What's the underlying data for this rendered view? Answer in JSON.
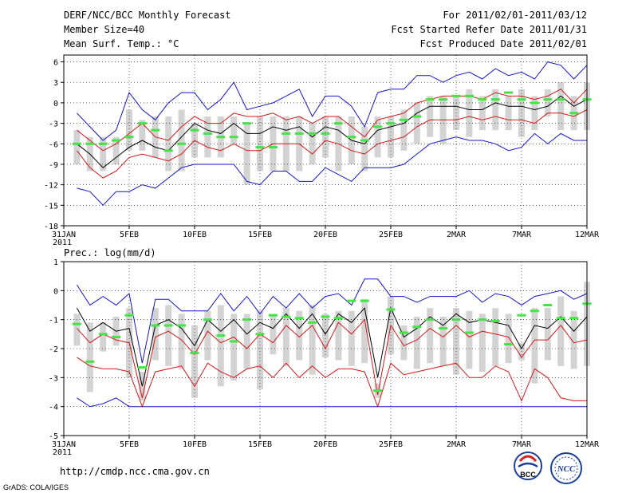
{
  "header": {
    "title": "DERF/NCC/BCC Monthly Forecast",
    "member_size": "Member Size=40",
    "variable": "Mean Surf. Temp.: °C",
    "period": "For 2011/02/01-2011/03/12",
    "started": "Fcst Started Refer Date 2011/01/31",
    "produced": "Fcst Produced Date 2011/02/01"
  },
  "footer": {
    "url": "http://cmdp.ncc.cma.gov.cn",
    "grads": "GrADS: COLA/IGES",
    "logo_bcc": "BCC",
    "logo_ncc": "NCC"
  },
  "colors": {
    "range_line": "#1515c8",
    "spread_line": "#d01818",
    "mean_line": "#000000",
    "member_bar": "#d3d3d3",
    "median_mark": "#44e444"
  },
  "chart_data": [
    {
      "type": "line",
      "panel": "temperature",
      "ylim": [
        -18,
        7
      ],
      "y_ticks": [
        6,
        3,
        0,
        -3,
        -6,
        -9,
        -12,
        -15,
        -18
      ],
      "x_ticks": [
        "31JAN 2011",
        "5FEB",
        "10FEB",
        "15FEB",
        "20FEB",
        "25FEB",
        "2MAR",
        "7MAR",
        "12MAR"
      ],
      "x_tick_days": [
        0,
        5,
        10,
        15,
        20,
        25,
        30,
        35,
        40
      ],
      "x": [
        1,
        2,
        3,
        4,
        5,
        6,
        7,
        8,
        9,
        10,
        11,
        12,
        13,
        14,
        15,
        16,
        17,
        18,
        19,
        20,
        21,
        22,
        23,
        24,
        25,
        26,
        27,
        28,
        29,
        30,
        31,
        32,
        33,
        34,
        35,
        36,
        37,
        38,
        39,
        40
      ],
      "series": [
        {
          "name": "max",
          "values": [
            -1.5,
            -3.5,
            -5.5,
            -4,
            1.5,
            -1,
            -2.5,
            0,
            1.5,
            1.5,
            -1,
            0.5,
            3,
            -1,
            -0.5,
            0,
            1,
            2,
            -2,
            1,
            1,
            -0.5,
            -3.5,
            1.5,
            2,
            2,
            4,
            4,
            3,
            4,
            4.5,
            3.5,
            5,
            4,
            4.5,
            3.5,
            6,
            5.5,
            3.5,
            5.5
          ]
        },
        {
          "name": "upper",
          "values": [
            -4,
            -5.5,
            -7,
            -6,
            -4.5,
            -3,
            -5,
            -5.5,
            -3.5,
            -2,
            -3,
            -3,
            -1.5,
            -2,
            -2,
            -1.5,
            -2.5,
            -2,
            -3,
            -2,
            -2,
            -3.5,
            -5,
            -2.5,
            -2,
            -1.5,
            0,
            0.5,
            1,
            1,
            1,
            0.5,
            1.5,
            1,
            1,
            0.5,
            1,
            2,
            0,
            2
          ]
        },
        {
          "name": "mean",
          "values": [
            -6,
            -7.5,
            -9.5,
            -8,
            -6.5,
            -5.5,
            -6.5,
            -7,
            -5,
            -3,
            -4,
            -4.5,
            -3,
            -4.5,
            -4.5,
            -3.5,
            -4,
            -3.5,
            -5,
            -3.5,
            -4,
            -5.5,
            -6,
            -4,
            -3.5,
            -3,
            -1.5,
            -0.5,
            -0.5,
            -0.5,
            -1,
            -1,
            0,
            -0.5,
            -0.5,
            -1,
            -0.5,
            1,
            -0.5,
            0.5
          ]
        },
        {
          "name": "lower",
          "values": [
            -7,
            -9.5,
            -11,
            -10,
            -8,
            -7.5,
            -8,
            -8.5,
            -7.5,
            -5.5,
            -6.5,
            -7,
            -6,
            -7,
            -7,
            -6,
            -6,
            -6,
            -7.5,
            -5.5,
            -6,
            -7,
            -7.5,
            -6,
            -5.5,
            -5,
            -3.5,
            -2.5,
            -2.5,
            -2.5,
            -2,
            -2.5,
            -2,
            -2.5,
            -2.5,
            -3,
            -1.5,
            -1.5,
            -2,
            -1
          ]
        },
        {
          "name": "min",
          "values": [
            -12.5,
            -13,
            -15,
            -13,
            -13,
            -12,
            -12.5,
            -11,
            -9.5,
            -9,
            -9,
            -9,
            -9,
            -11.5,
            -12,
            -10,
            -10,
            -11.5,
            -11.5,
            -9.5,
            -10.5,
            -11.5,
            -9.5,
            -9.5,
            -9.5,
            -9,
            -7.5,
            -6,
            -5.5,
            -5,
            -5.5,
            -5.5,
            -6,
            -7,
            -6.5,
            -4.5,
            -6,
            -4.5,
            -5.5,
            -5.5
          ]
        },
        {
          "name": "bar_top",
          "values": [
            -4,
            -5,
            -5,
            -5,
            -1,
            -2.5,
            -2,
            -2,
            -1,
            -3,
            -2,
            -2,
            -2,
            -3,
            -2,
            -2,
            -2,
            -2,
            -3,
            -2,
            -2,
            -2,
            -3.5,
            -2,
            -2,
            -1,
            0,
            1,
            1,
            1,
            2,
            1,
            2,
            1,
            2,
            1,
            2,
            3,
            1,
            3
          ]
        },
        {
          "name": "bar_bottom",
          "values": [
            -9,
            -10,
            -10,
            -9,
            -7,
            -7,
            -8,
            -10,
            -10,
            -8,
            -8,
            -8,
            -6,
            -12,
            -10,
            -10,
            -10,
            -10,
            -9,
            -8,
            -10,
            -9,
            -10,
            -8,
            -8,
            -7,
            -6,
            -5,
            -6,
            -4,
            -5,
            -4,
            -4,
            -4,
            -5,
            -4,
            -2,
            -4,
            -4,
            -4
          ]
        },
        {
          "name": "median",
          "values": [
            -6,
            -6,
            -6,
            -5.5,
            -5,
            -3,
            -4,
            -7,
            -6,
            -4,
            -4.5,
            -5,
            -5,
            -3,
            -6.5,
            -6.5,
            -4.5,
            -4.5,
            -4.5,
            -4.5,
            -3,
            -5,
            -5.5,
            -3.5,
            -3,
            -2.5,
            -2,
            0.5,
            0.5,
            1,
            1,
            0.5,
            0.5,
            1.5,
            0.5,
            0,
            0.5,
            0.5,
            -1.5,
            0.5
          ]
        }
      ]
    },
    {
      "type": "line",
      "panel": "precipitation",
      "title": "Prec.: log(mm/d)",
      "ylim": [
        -5,
        1
      ],
      "y_ticks": [
        1,
        0,
        -1,
        -2,
        -3,
        -4,
        -5
      ],
      "x_ticks": [
        "31JAN 2011",
        "5FEB",
        "10FEB",
        "15FEB",
        "20FEB",
        "25FEB",
        "2MAR",
        "7MAR",
        "12MAR"
      ],
      "x_tick_days": [
        0,
        5,
        10,
        15,
        20,
        25,
        30,
        35,
        40
      ],
      "x": [
        1,
        2,
        3,
        4,
        5,
        6,
        7,
        8,
        9,
        10,
        11,
        12,
        13,
        14,
        15,
        16,
        17,
        18,
        19,
        20,
        21,
        22,
        23,
        24,
        25,
        26,
        27,
        28,
        29,
        30,
        31,
        32,
        33,
        34,
        35,
        36,
        37,
        38,
        39,
        40
      ],
      "series": [
        {
          "name": "max",
          "values": [
            0.2,
            -0.5,
            -0.2,
            -0.5,
            -0.1,
            -2.5,
            -0.3,
            -0.3,
            -0.7,
            -0.7,
            -0.7,
            -0.1,
            -0.7,
            -0.2,
            -0.8,
            -0.2,
            -0.6,
            -0.1,
            -0.6,
            -0.2,
            -0.1,
            -0.5,
            0.4,
            0.4,
            -0.2,
            -0.2,
            -0.4,
            -0.2,
            -0.2,
            -0.2,
            0,
            -0.4,
            -0.1,
            -0.2,
            -0.5,
            -0.2,
            -0.1,
            0,
            -0.3,
            -0.1
          ]
        },
        {
          "name": "mean",
          "values": [
            -0.6,
            -1.4,
            -1.1,
            -1.4,
            -1.3,
            -3.3,
            -1.2,
            -1.0,
            -1.3,
            -1.9,
            -1.0,
            -1.4,
            -1.0,
            -1.5,
            -1.1,
            -1.3,
            -0.8,
            -1.3,
            -0.8,
            -1.5,
            -0.8,
            -1.1,
            -0.6,
            -3.0,
            -0.6,
            -1.6,
            -1.3,
            -0.9,
            -1.2,
            -0.8,
            -1.1,
            -1.0,
            -1.1,
            -1.2,
            -2.0,
            -1.2,
            -1.3,
            -0.9,
            -1.4,
            -0.9
          ]
        },
        {
          "name": "upper",
          "values": [
            -1.3,
            -1.8,
            -1.5,
            -1.7,
            -1.8,
            -3.7,
            -1.6,
            -1.4,
            -1.7,
            -2.2,
            -1.4,
            -1.8,
            -1.6,
            -2.0,
            -1.5,
            -1.8,
            -1.2,
            -1.6,
            -1.2,
            -2.0,
            -1.1,
            -1.5,
            -1.0,
            -3.6,
            -1.2,
            -1.9,
            -1.7,
            -1.3,
            -1.6,
            -1.2,
            -1.6,
            -1.4,
            -1.5,
            -1.6,
            -2.3,
            -1.7,
            -1.7,
            -1.2,
            -1.8,
            -1.7
          ]
        },
        {
          "name": "lower",
          "values": [
            -2.3,
            -2.6,
            -2.7,
            -2.7,
            -2.8,
            -4.0,
            -2.8,
            -2.7,
            -2.6,
            -3.3,
            -2.5,
            -2.8,
            -3.0,
            -2.7,
            -2.6,
            -3.0,
            -2.5,
            -3.0,
            -2.6,
            -3.0,
            -2.7,
            -2.7,
            -2.8,
            -4.0,
            -2.5,
            -2.9,
            -2.8,
            -2.7,
            -2.6,
            -2.5,
            -3.0,
            -3.0,
            -2.6,
            -2.8,
            -3.8,
            -2.7,
            -3.0,
            -3.7,
            -3.8,
            -3.8
          ]
        },
        {
          "name": "min",
          "values": [
            -3.7,
            -4.0,
            -3.9,
            -3.7,
            -4.0,
            -4.0,
            -4.0,
            -4.0,
            -4.0,
            -4.0,
            -4.0,
            -4.0,
            -4.0,
            -4.0,
            -4.0,
            -4.0,
            -4.0,
            -4.0,
            -4.0,
            -4.0,
            -4.0,
            -4.0,
            -4.0,
            -4.0,
            -4.0,
            -4.0,
            -4.0,
            -4.0,
            -4.0,
            -4.0,
            -4.0,
            -4.0,
            -4.0,
            -4.0,
            -4.0,
            -4.0,
            -4.0,
            -4.0,
            -4.0,
            -4.0
          ]
        },
        {
          "name": "bar_top",
          "values": [
            -0.8,
            -1.1,
            -1.1,
            -0.9,
            -0.6,
            -2.8,
            -0.6,
            -0.5,
            -0.8,
            -1.2,
            -0.7,
            -0.5,
            -0.8,
            -0.8,
            -0.7,
            -0.8,
            -0.6,
            -0.7,
            -0.5,
            -0.8,
            -0.7,
            -0.7,
            -0.3,
            -3.2,
            -0.2,
            -1.2,
            -0.9,
            -0.6,
            -0.9,
            -0.6,
            -0.7,
            -0.8,
            -0.6,
            -0.8,
            -1.8,
            -0.6,
            -0.6,
            -0.2,
            -0.7,
            0.3
          ]
        },
        {
          "name": "bar_bottom",
          "values": [
            -1.9,
            -3.5,
            -2.1,
            -1.9,
            -3.0,
            -3.8,
            -2.4,
            -2.6,
            -2.7,
            -3.7,
            -2.4,
            -3.3,
            -3.1,
            -2.7,
            -3.4,
            -2.2,
            -2.6,
            -2.4,
            -2.9,
            -2.3,
            -2.4,
            -2.6,
            -2.5,
            -3.7,
            -2.2,
            -2.4,
            -2.7,
            -2.5,
            -2.6,
            -2.9,
            -2.7,
            -2.8,
            -2.6,
            -2.5,
            -2.4,
            -3.2,
            -2.4,
            -2.6,
            -2.7,
            -2.6
          ]
        },
        {
          "name": "median",
          "values": [
            -1.15,
            -2.45,
            -1.5,
            -1.6,
            -0.85,
            -2.65,
            -1.2,
            -1.2,
            -1.2,
            -2.15,
            -1.0,
            -1.55,
            -1.75,
            -1.0,
            -1.5,
            -0.85,
            -0.9,
            -0.95,
            -1.1,
            -0.9,
            -0.95,
            -0.35,
            -0.35,
            -3.45,
            -0.65,
            -1.45,
            -1.25,
            -1.0,
            -1.3,
            -1.0,
            -1.45,
            -1.0,
            -1.05,
            -1.85,
            -0.85,
            -0.7,
            -0.5,
            -0.95,
            -0.95,
            -0.45
          ]
        }
      ]
    }
  ]
}
